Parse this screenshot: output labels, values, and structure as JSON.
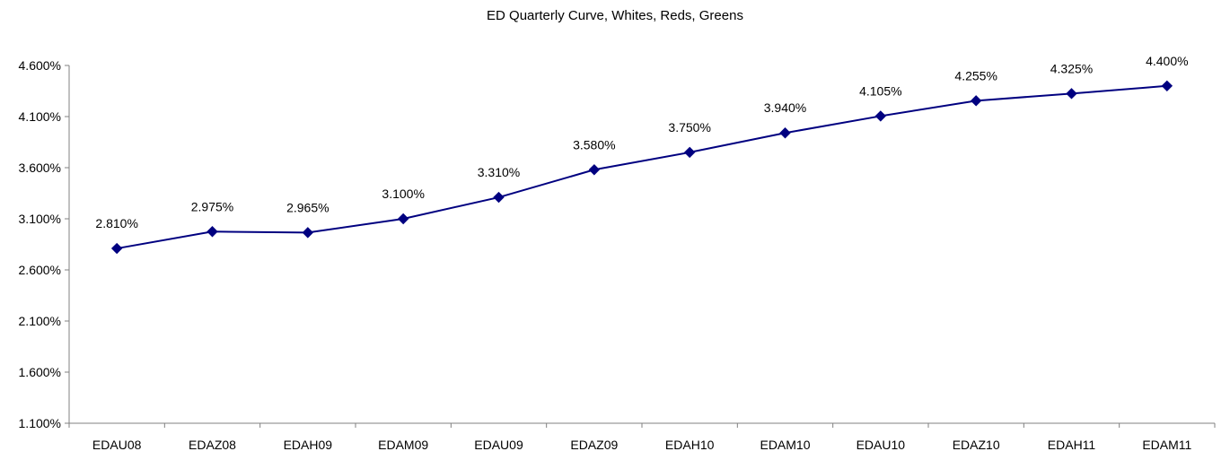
{
  "chart_data": {
    "type": "line",
    "title": "ED Quarterly Curve, Whites, Reds, Greens",
    "xlabel": "",
    "ylabel": "",
    "categories": [
      "EDAU08",
      "EDAZ08",
      "EDAH09",
      "EDAM09",
      "EDAU09",
      "EDAZ09",
      "EDAH10",
      "EDAM10",
      "EDAU10",
      "EDAZ10",
      "EDAH11",
      "EDAM11"
    ],
    "series": [
      {
        "values": [
          2.81,
          2.975,
          2.965,
          3.1,
          3.31,
          3.58,
          3.75,
          3.94,
          4.105,
          4.255,
          4.325,
          4.4
        ],
        "data_labels": [
          "2.810%",
          "2.975%",
          "2.965%",
          "3.100%",
          "3.310%",
          "3.580%",
          "3.750%",
          "3.940%",
          "4.105%",
          "4.255%",
          "4.325%",
          "4.400%"
        ],
        "color": "#000080",
        "marker": "diamond"
      }
    ],
    "ylim": [
      1.1,
      4.6
    ],
    "yticks": [
      1.1,
      1.6,
      2.1,
      2.6,
      3.1,
      3.6,
      4.1,
      4.6
    ],
    "ytick_labels": [
      "1.100%",
      "1.600%",
      "2.100%",
      "2.600%",
      "3.100%",
      "3.600%",
      "4.100%",
      "4.600%"
    ],
    "grid": false,
    "legend": "none"
  }
}
